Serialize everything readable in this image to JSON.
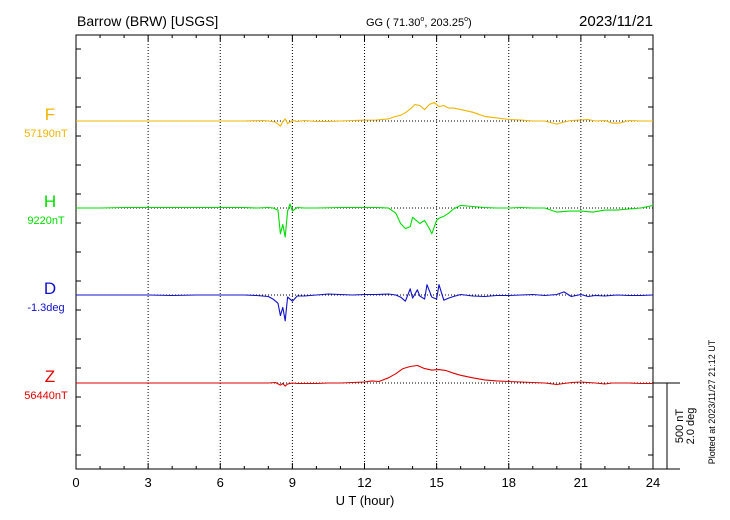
{
  "header": {
    "station": "Barrow (BRW)  [USGS]",
    "coords_prefix": "GG ( 71.30",
    "coords_mid": ", 203.25",
    "coords_suffix": ")",
    "date": "2023/11/21"
  },
  "footer": {
    "plotted_note": "Plotted at 2023/11/27 21:12 UT"
  },
  "scale_bar": {
    "label_nt": "500 nT",
    "label_deg": "2.0 deg"
  },
  "colors": {
    "F": "#f0b400",
    "H": "#00dd00",
    "D": "#1010cc",
    "Z": "#e00000",
    "axis": "#000000",
    "grid": "#000000"
  },
  "chart_data": {
    "type": "line",
    "xlabel": "U T (hour)",
    "xlim": [
      0,
      24
    ],
    "x_ticks": [
      0,
      3,
      6,
      9,
      12,
      15,
      18,
      21,
      24
    ],
    "x_tick_labels": [
      "0",
      "3",
      "6",
      "9",
      "12",
      "15",
      "18",
      "21",
      "24"
    ],
    "scale_bar_value": 500,
    "scale_bar_unit": "nT",
    "series": [
      {
        "name": "F",
        "baseline_label": "57190nT",
        "color": "#f0b400",
        "baseline": 0,
        "x": [
          0,
          1,
          2,
          3,
          4,
          5,
          6,
          7,
          7.8,
          8.3,
          8.5,
          8.6,
          8.7,
          8.8,
          9.0,
          9.2,
          9.5,
          10,
          10.5,
          11,
          11.5,
          12,
          12.5,
          13,
          13.3,
          13.5,
          13.7,
          13.9,
          14.1,
          14.3,
          14.5,
          14.7,
          14.9,
          15.1,
          15.3,
          15.5,
          15.7,
          16,
          16.5,
          17,
          17.5,
          18,
          18.5,
          19,
          19.5,
          20,
          20.3,
          20.6,
          21,
          21.3,
          21.6,
          22,
          22.3,
          22.6,
          23,
          23.5,
          24
        ],
        "y": [
          0,
          0,
          0,
          0,
          0,
          0,
          0,
          0,
          5,
          -10,
          -50,
          -5,
          20,
          -25,
          5,
          -5,
          5,
          -5,
          -5,
          0,
          5,
          8,
          10,
          20,
          45,
          55,
          80,
          115,
          160,
          150,
          110,
          160,
          180,
          140,
          150,
          125,
          125,
          110,
          85,
          45,
          30,
          15,
          10,
          0,
          0,
          -30,
          -10,
          5,
          10,
          15,
          0,
          5,
          -20,
          -20,
          5,
          0,
          0
        ]
      },
      {
        "name": "H",
        "baseline_label": "9220nT",
        "color": "#00dd00",
        "baseline": 0,
        "x": [
          0,
          1,
          2,
          3,
          4,
          5,
          6,
          7,
          7.5,
          8,
          8.2,
          8.4,
          8.5,
          8.6,
          8.7,
          8.8,
          8.9,
          9.0,
          9.2,
          9.5,
          10,
          11,
          12,
          12.5,
          13,
          13.3,
          13.5,
          13.7,
          13.9,
          14.0,
          14.2,
          14.3,
          14.5,
          14.7,
          14.8,
          15.0,
          15.1,
          15.3,
          15.5,
          15.7,
          16,
          16.5,
          17,
          17.5,
          18,
          18.5,
          19,
          19.5,
          20,
          20.5,
          21,
          21.5,
          22,
          22.5,
          23,
          23.5,
          24
        ],
        "y": [
          0,
          0,
          5,
          5,
          5,
          5,
          5,
          5,
          0,
          5,
          0,
          -20,
          -250,
          -160,
          -280,
          -30,
          40,
          -30,
          5,
          0,
          0,
          5,
          5,
          5,
          0,
          -50,
          -150,
          -200,
          -180,
          -90,
          -130,
          -150,
          -120,
          -200,
          -250,
          -120,
          -100,
          -80,
          -50,
          -10,
          25,
          15,
          5,
          0,
          0,
          5,
          0,
          0,
          -40,
          -30,
          -30,
          -40,
          -20,
          -20,
          -10,
          0,
          25
        ]
      },
      {
        "name": "D",
        "baseline_label": "-1.3deg",
        "color": "#1010cc",
        "baseline": 0,
        "x": [
          0,
          1,
          2,
          3,
          4,
          5,
          6,
          7,
          7.5,
          8,
          8.2,
          8.4,
          8.5,
          8.6,
          8.7,
          8.8,
          8.9,
          9.0,
          9.2,
          9.5,
          10,
          10.5,
          11,
          11.5,
          12,
          12.5,
          13,
          13.3,
          13.5,
          13.7,
          13.9,
          14.0,
          14.2,
          14.3,
          14.5,
          14.6,
          14.8,
          15.0,
          15.1,
          15.3,
          15.5,
          15.7,
          16,
          16.5,
          17,
          17.5,
          18,
          18.5,
          19,
          19.5,
          20,
          20.3,
          20.6,
          21,
          21.3,
          21.6,
          22,
          22.5,
          23,
          23.5,
          24
        ],
        "y": [
          0,
          0,
          0,
          0,
          -5,
          0,
          0,
          0,
          -5,
          -15,
          -40,
          -80,
          -200,
          -120,
          -250,
          -20,
          -40,
          -60,
          -10,
          -10,
          0,
          10,
          5,
          0,
          5,
          5,
          10,
          0,
          -20,
          -60,
          60,
          -30,
          50,
          -10,
          -40,
          100,
          -20,
          -40,
          100,
          -50,
          -30,
          -15,
          5,
          -10,
          -15,
          -5,
          -5,
          0,
          5,
          -5,
          5,
          30,
          -15,
          5,
          -15,
          -5,
          -10,
          0,
          -5,
          -5,
          0
        ]
      },
      {
        "name": "Z",
        "baseline_label": "56440nT",
        "color": "#e00000",
        "baseline": 0,
        "x": [
          0,
          1,
          2,
          3,
          4,
          5,
          6,
          7,
          7.5,
          8,
          8.3,
          8.5,
          8.6,
          8.7,
          8.8,
          9.0,
          9.2,
          9.5,
          10,
          10.5,
          11,
          11.5,
          12,
          12.3,
          12.6,
          13,
          13.3,
          13.6,
          13.9,
          14.2,
          14.5,
          14.8,
          15.1,
          15.4,
          15.7,
          16,
          16.5,
          17,
          17.5,
          18,
          18.5,
          19,
          19.5,
          20,
          20.3,
          20.6,
          21,
          21.3,
          21.6,
          22,
          22.3,
          22.6,
          23,
          23.5,
          24
        ],
        "y": [
          0,
          0,
          0,
          0,
          0,
          0,
          0,
          0,
          0,
          0,
          5,
          -20,
          -5,
          -30,
          -10,
          0,
          -5,
          -5,
          -5,
          0,
          0,
          5,
          10,
          20,
          15,
          50,
          90,
          140,
          160,
          170,
          140,
          125,
          130,
          120,
          95,
          75,
          50,
          30,
          20,
          15,
          10,
          5,
          0,
          -15,
          -5,
          5,
          10,
          5,
          0,
          -10,
          0,
          0,
          0,
          -5,
          -5
        ]
      }
    ]
  }
}
